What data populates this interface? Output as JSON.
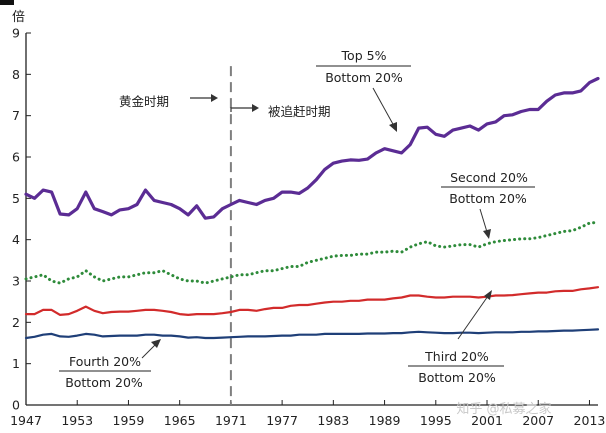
{
  "chart_data": {
    "type": "line",
    "ylabel": "倍",
    "ylim": [
      0,
      9
    ],
    "xlim": [
      1947,
      2014
    ],
    "yticks": [
      0,
      1,
      2,
      3,
      4,
      5,
      6,
      7,
      8,
      9
    ],
    "xticks": [
      1947,
      1953,
      1959,
      1965,
      1971,
      1977,
      1983,
      1989,
      1995,
      2001,
      2007,
      2013
    ],
    "xtick_labels": [
      "1947",
      "1953",
      "1959",
      "1965",
      "1971",
      "1977",
      "1983",
      "1989",
      "1995",
      "2001",
      "2007",
      "2013"
    ],
    "grid": false,
    "legend": "none",
    "divider": {
      "x": 1971
    },
    "periods": {
      "left": "黄金时期",
      "right": "被追赶时期"
    },
    "series": [
      {
        "name_top": "Top 5%",
        "name_bottom": "Bottom 20%",
        "color": "#5b2c94",
        "style": "solid",
        "x": [
          1947,
          1948,
          1949,
          1950,
          1951,
          1952,
          1953,
          1954,
          1955,
          1956,
          1957,
          1958,
          1959,
          1960,
          1961,
          1962,
          1963,
          1964,
          1965,
          1966,
          1967,
          1968,
          1969,
          1970,
          1971,
          1972,
          1973,
          1974,
          1975,
          1976,
          1977,
          1978,
          1979,
          1980,
          1981,
          1982,
          1983,
          1984,
          1985,
          1986,
          1987,
          1988,
          1989,
          1990,
          1991,
          1992,
          1993,
          1994,
          1995,
          1996,
          1997,
          1998,
          1999,
          2000,
          2001,
          2002,
          2003,
          2004,
          2005,
          2006,
          2007,
          2008,
          2009,
          2010,
          2011,
          2012,
          2013,
          2014
        ],
        "values": [
          5.1,
          5.0,
          5.2,
          5.15,
          4.62,
          4.6,
          4.75,
          5.15,
          4.75,
          4.68,
          4.6,
          4.72,
          4.75,
          4.85,
          5.2,
          4.95,
          4.9,
          4.85,
          4.75,
          4.6,
          4.82,
          4.52,
          4.55,
          4.75,
          4.85,
          4.95,
          4.9,
          4.85,
          4.95,
          5.0,
          5.15,
          5.15,
          5.12,
          5.25,
          5.45,
          5.7,
          5.85,
          5.9,
          5.93,
          5.92,
          5.95,
          6.1,
          6.2,
          6.15,
          6.1,
          6.3,
          6.7,
          6.72,
          6.55,
          6.5,
          6.65,
          6.7,
          6.75,
          6.65,
          6.8,
          6.85,
          7.0,
          7.02,
          7.1,
          7.15,
          7.15,
          7.35,
          7.5,
          7.55,
          7.55,
          7.6,
          7.8,
          7.9
        ]
      },
      {
        "name_top": "Second 20%",
        "name_bottom": "Bottom 20%",
        "color": "#2e8b3a",
        "style": "dotted",
        "x": [
          1947,
          1948,
          1949,
          1950,
          1951,
          1952,
          1953,
          1954,
          1955,
          1956,
          1957,
          1958,
          1959,
          1960,
          1961,
          1962,
          1963,
          1964,
          1965,
          1966,
          1967,
          1968,
          1969,
          1970,
          1971,
          1972,
          1973,
          1974,
          1975,
          1976,
          1977,
          1978,
          1979,
          1980,
          1981,
          1982,
          1983,
          1984,
          1985,
          1986,
          1987,
          1988,
          1989,
          1990,
          1991,
          1992,
          1993,
          1994,
          1995,
          1996,
          1997,
          1998,
          1999,
          2000,
          2001,
          2002,
          2003,
          2004,
          2005,
          2006,
          2007,
          2008,
          2009,
          2010,
          2011,
          2012,
          2013,
          2014
        ],
        "values": [
          3.05,
          3.1,
          3.15,
          3.0,
          2.95,
          3.05,
          3.1,
          3.25,
          3.1,
          3.0,
          3.05,
          3.1,
          3.1,
          3.15,
          3.2,
          3.2,
          3.25,
          3.15,
          3.05,
          3.0,
          3.0,
          2.95,
          3.0,
          3.05,
          3.1,
          3.15,
          3.15,
          3.2,
          3.25,
          3.25,
          3.3,
          3.35,
          3.35,
          3.45,
          3.5,
          3.55,
          3.6,
          3.62,
          3.62,
          3.65,
          3.65,
          3.7,
          3.7,
          3.72,
          3.7,
          3.82,
          3.9,
          3.95,
          3.85,
          3.82,
          3.85,
          3.88,
          3.88,
          3.82,
          3.9,
          3.95,
          3.98,
          4.0,
          4.02,
          4.02,
          4.05,
          4.1,
          4.15,
          4.2,
          4.22,
          4.3,
          4.4,
          4.42
        ]
      },
      {
        "name_top": "Third 20%",
        "name_bottom": "Bottom 20%",
        "color": "#d22b2b",
        "style": "solid",
        "x": [
          1947,
          1948,
          1949,
          1950,
          1951,
          1952,
          1953,
          1954,
          1955,
          1956,
          1957,
          1958,
          1959,
          1960,
          1961,
          1962,
          1963,
          1964,
          1965,
          1966,
          1967,
          1968,
          1969,
          1970,
          1971,
          1972,
          1973,
          1974,
          1975,
          1976,
          1977,
          1978,
          1979,
          1980,
          1981,
          1982,
          1983,
          1984,
          1985,
          1986,
          1987,
          1988,
          1989,
          1990,
          1991,
          1992,
          1993,
          1994,
          1995,
          1996,
          1997,
          1998,
          1999,
          2000,
          2001,
          2002,
          2003,
          2004,
          2005,
          2006,
          2007,
          2008,
          2009,
          2010,
          2011,
          2012,
          2013,
          2014
        ],
        "values": [
          2.2,
          2.2,
          2.3,
          2.3,
          2.18,
          2.2,
          2.28,
          2.38,
          2.28,
          2.22,
          2.25,
          2.26,
          2.26,
          2.28,
          2.3,
          2.3,
          2.28,
          2.25,
          2.2,
          2.18,
          2.2,
          2.2,
          2.2,
          2.22,
          2.25,
          2.3,
          2.3,
          2.28,
          2.32,
          2.35,
          2.35,
          2.4,
          2.42,
          2.42,
          2.45,
          2.48,
          2.5,
          2.5,
          2.52,
          2.52,
          2.55,
          2.55,
          2.55,
          2.58,
          2.6,
          2.65,
          2.65,
          2.62,
          2.6,
          2.6,
          2.62,
          2.62,
          2.62,
          2.6,
          2.62,
          2.65,
          2.65,
          2.66,
          2.68,
          2.7,
          2.72,
          2.72,
          2.75,
          2.76,
          2.76,
          2.8,
          2.82,
          2.85
        ]
      },
      {
        "name_top": "Fourth 20%",
        "name_bottom": "Bottom 20%",
        "color": "#1f3f78",
        "style": "solid",
        "x": [
          1947,
          1948,
          1949,
          1950,
          1951,
          1952,
          1953,
          1954,
          1955,
          1956,
          1957,
          1958,
          1959,
          1960,
          1961,
          1962,
          1963,
          1964,
          1965,
          1966,
          1967,
          1968,
          1969,
          1970,
          1971,
          1972,
          1973,
          1974,
          1975,
          1976,
          1977,
          1978,
          1979,
          1980,
          1981,
          1982,
          1983,
          1984,
          1985,
          1986,
          1987,
          1988,
          1989,
          1990,
          1991,
          1992,
          1993,
          1994,
          1995,
          1996,
          1997,
          1998,
          1999,
          2000,
          2001,
          2002,
          2003,
          2004,
          2005,
          2006,
          2007,
          2008,
          2009,
          2010,
          2011,
          2012,
          2013,
          2014
        ],
        "values": [
          1.62,
          1.65,
          1.7,
          1.72,
          1.66,
          1.65,
          1.68,
          1.72,
          1.7,
          1.66,
          1.67,
          1.68,
          1.68,
          1.68,
          1.7,
          1.7,
          1.68,
          1.68,
          1.66,
          1.63,
          1.64,
          1.62,
          1.62,
          1.63,
          1.64,
          1.65,
          1.66,
          1.66,
          1.66,
          1.67,
          1.68,
          1.68,
          1.7,
          1.7,
          1.7,
          1.72,
          1.72,
          1.72,
          1.72,
          1.72,
          1.73,
          1.73,
          1.73,
          1.74,
          1.74,
          1.76,
          1.77,
          1.76,
          1.75,
          1.74,
          1.74,
          1.75,
          1.75,
          1.74,
          1.75,
          1.76,
          1.76,
          1.76,
          1.77,
          1.77,
          1.78,
          1.78,
          1.79,
          1.8,
          1.8,
          1.81,
          1.82,
          1.83
        ]
      }
    ]
  },
  "watermark": "知乎 @私募之家",
  "colors": {
    "axis": "#222222",
    "divider": "#7f7f7f",
    "arrow": "#333333"
  }
}
